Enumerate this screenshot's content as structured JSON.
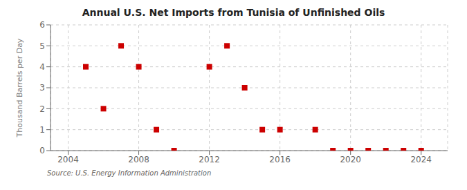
{
  "chart_data": {
    "type": "scatter",
    "title": "Annual U.S. Net Imports from Tunisia of Unfinished Oils",
    "ylabel": "Thousand Barrels per Day",
    "annotations": [
      "Source: U.S. Energy Information Administration"
    ],
    "x": [
      2005,
      2006,
      2007,
      2008,
      2009,
      2010,
      2012,
      2013,
      2014,
      2015,
      2016,
      2018,
      2019,
      2020,
      2021,
      2022,
      2023,
      2024
    ],
    "values": [
      4,
      2,
      5,
      4,
      1,
      0,
      4,
      5,
      3,
      1,
      1,
      1,
      0,
      0,
      0,
      0,
      0,
      0
    ],
    "color": "#cc0000",
    "marker": "square",
    "xlim": [
      2003,
      2025.5
    ],
    "ylim": [
      0,
      6
    ],
    "xticks": [
      2004,
      2008,
      2012,
      2016,
      2020,
      2024
    ],
    "yticks": [
      0,
      1,
      2,
      3,
      4,
      5,
      6
    ],
    "grid": true
  }
}
